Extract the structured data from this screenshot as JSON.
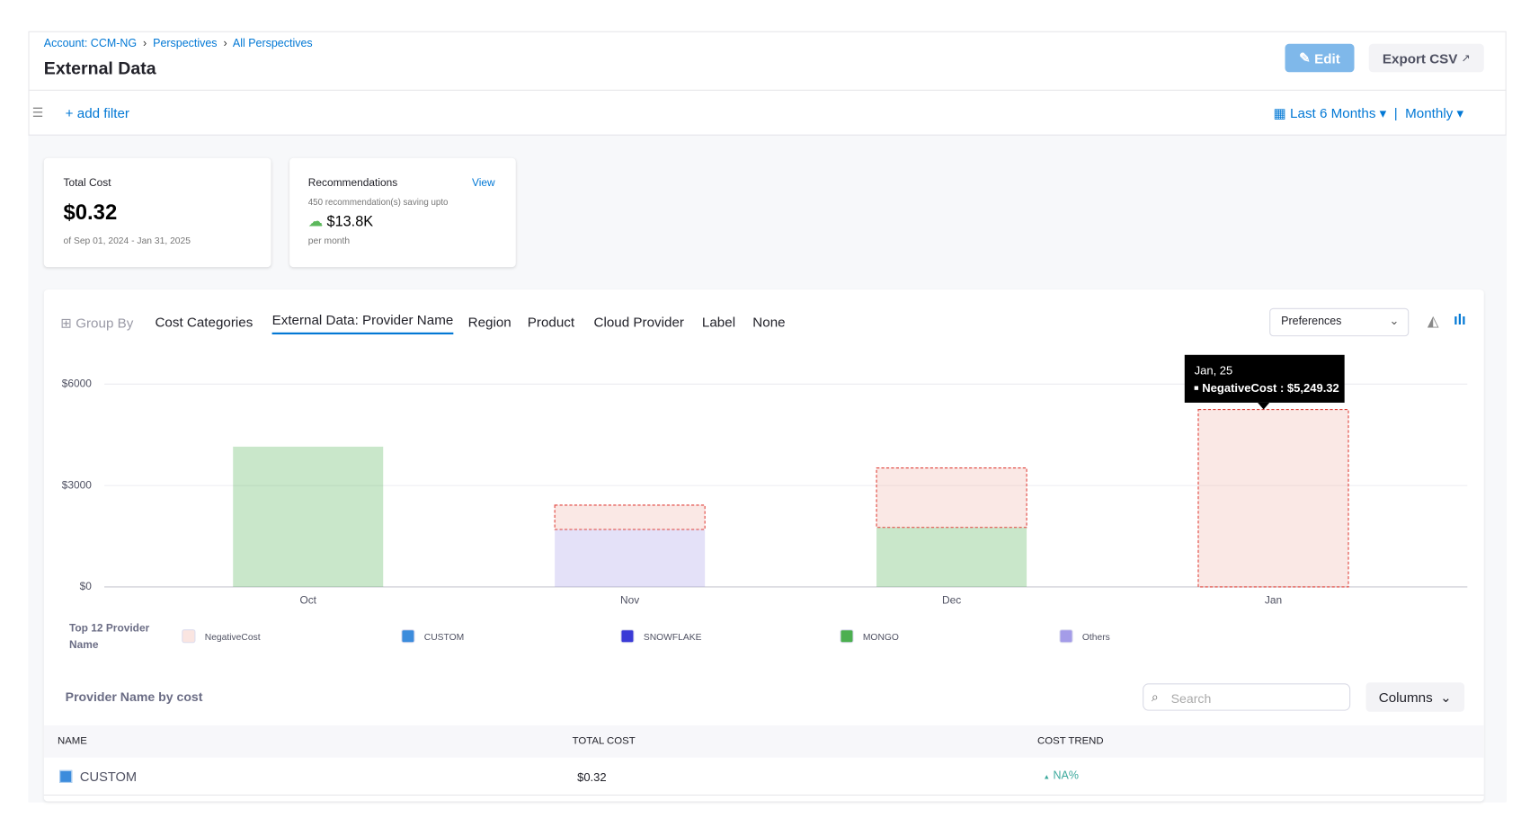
{
  "header": {
    "breadcrumbs": [
      "Account: CCM-NG",
      "Perspectives",
      "All Perspectives"
    ],
    "title": "External Data",
    "edit_button": "Edit",
    "export_button": "Export CSV"
  },
  "filter_bar": {
    "add_filter": "+ add filter",
    "time_range": "Last 6 Months",
    "granularity": "Monthly"
  },
  "cards": {
    "total_cost": {
      "label": "Total Cost",
      "value": "$0.32",
      "range": "of Sep 01, 2024 - Jan 31, 2025"
    },
    "recommendations": {
      "label": "Recommendations",
      "link": "View",
      "note": "450 recommendation(s) saving upto",
      "value": "$13.8K",
      "period": "per month"
    }
  },
  "group_by": {
    "label": "Group By",
    "tabs": [
      "Cost Categories",
      "External Data: Provider Name",
      "Region",
      "Product",
      "Cloud Provider",
      "Label",
      "None"
    ],
    "active": 1,
    "preferences": "Preferences"
  },
  "chart_data": {
    "type": "bar",
    "stacked": true,
    "categories": [
      "Oct",
      "Nov",
      "Dec",
      "Jan"
    ],
    "series": [
      {
        "name": "NegativeCost",
        "color": "#f0b4aa",
        "border_color": "#e0413a",
        "values": [
          null,
          720,
          1760,
          5249.32
        ]
      },
      {
        "name": "CUSTOM",
        "color": "#3c8cdc",
        "values": [
          null,
          null,
          null,
          null
        ]
      },
      {
        "name": "SNOWFLAKE",
        "color": "#3b3bd6",
        "values": [
          null,
          null,
          null,
          null
        ]
      },
      {
        "name": "MONGO",
        "color": "#4caf50",
        "values": [
          4150,
          null,
          1760,
          null
        ]
      },
      {
        "name": "Others",
        "color": "#a49ce8",
        "values": [
          null,
          1700,
          null,
          null
        ]
      }
    ],
    "ylim": [
      0,
      6000
    ],
    "yticks": [
      {
        "value": 0,
        "label": "$0"
      },
      {
        "value": 3000,
        "label": "$3000"
      },
      {
        "value": 6000,
        "label": "$6000"
      }
    ],
    "grid": true,
    "legend_title": "Top 12 Provider Name",
    "tooltip": {
      "title": "Jan, 25",
      "text": "NegativeCost : $5,249.32"
    }
  },
  "table": {
    "title": "Provider Name by cost",
    "search_placeholder": "Search",
    "columns_button": "Columns",
    "headers": [
      "NAME",
      "TOTAL COST",
      "COST TREND"
    ],
    "rows": [
      [
        "CUSTOM",
        "$0.32",
        "NA%"
      ]
    ]
  }
}
